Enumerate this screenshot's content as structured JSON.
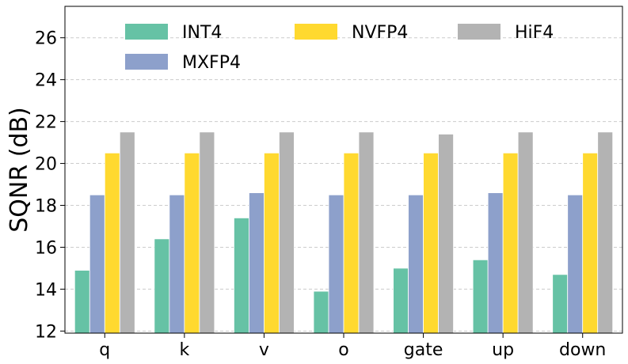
{
  "chart_data": {
    "type": "bar",
    "title": "",
    "xlabel": "",
    "ylabel": "SQNR (dB)",
    "categories": [
      "q",
      "k",
      "v",
      "o",
      "gate",
      "up",
      "down"
    ],
    "ylim": [
      11.9,
      27.5
    ],
    "yticks": [
      12,
      14,
      16,
      18,
      20,
      22,
      24,
      26
    ],
    "grid": "horizontal dashed",
    "legend_position": "top",
    "series": [
      {
        "name": "INT4",
        "color": "#66c2a5",
        "values": [
          14.9,
          16.4,
          17.4,
          13.9,
          15.0,
          15.4,
          14.7
        ]
      },
      {
        "name": "MXFP4",
        "color": "#8da0cb",
        "values": [
          18.5,
          18.5,
          18.6,
          18.5,
          18.5,
          18.6,
          18.5
        ]
      },
      {
        "name": "NVFP4",
        "color": "#ffd92f",
        "values": [
          20.5,
          20.5,
          20.5,
          20.5,
          20.5,
          20.5,
          20.5
        ]
      },
      {
        "name": "HiF4",
        "color": "#b3b3b3",
        "values": [
          21.5,
          21.5,
          21.5,
          21.5,
          21.4,
          21.5,
          21.5
        ]
      }
    ]
  }
}
